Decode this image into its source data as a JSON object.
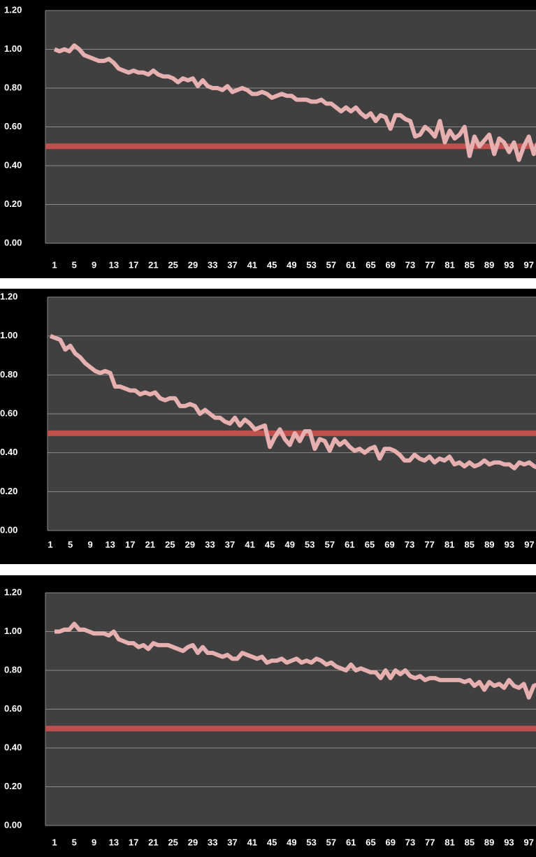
{
  "chart_data": [
    {
      "type": "line",
      "categories": [
        1,
        null,
        null,
        null,
        5,
        null,
        null,
        null,
        9,
        null,
        null,
        null,
        13,
        null,
        null,
        null,
        17,
        null,
        null,
        null,
        21,
        null,
        null,
        null,
        25,
        null,
        null,
        null,
        29,
        null,
        null,
        null,
        33,
        null,
        null,
        null,
        37,
        null,
        null,
        null,
        41,
        null,
        null,
        null,
        45,
        null,
        null,
        null,
        49,
        null,
        null,
        null,
        53,
        null,
        null,
        null,
        57,
        null,
        null,
        null,
        61,
        null,
        null,
        null,
        65,
        null,
        null,
        null,
        69,
        null,
        null,
        null,
        73,
        null,
        null,
        null,
        77,
        null,
        null,
        null,
        81,
        null,
        null,
        null,
        85,
        null,
        null,
        null,
        89,
        null,
        null,
        null,
        93,
        null,
        null,
        null,
        97,
        null,
        null,
        null
      ],
      "series": [
        {
          "color": "#e6b0b0",
          "values": [
            1.0,
            0.99,
            1.0,
            0.99,
            1.02,
            1.0,
            0.97,
            0.96,
            0.95,
            0.94,
            0.94,
            0.95,
            0.93,
            0.9,
            0.89,
            0.88,
            0.89,
            0.88,
            0.88,
            0.87,
            0.89,
            0.87,
            0.86,
            0.86,
            0.85,
            0.83,
            0.85,
            0.84,
            0.85,
            0.81,
            0.84,
            0.81,
            0.8,
            0.8,
            0.79,
            0.81,
            0.78,
            0.79,
            0.8,
            0.79,
            0.77,
            0.77,
            0.78,
            0.77,
            0.75,
            0.76,
            0.77,
            0.76,
            0.76,
            0.74,
            0.74,
            0.74,
            0.73,
            0.73,
            0.74,
            0.72,
            0.72,
            0.7,
            0.68,
            0.7,
            0.68,
            0.7,
            0.67,
            0.65,
            0.67,
            0.63,
            0.66,
            0.65,
            0.59,
            0.66,
            0.66,
            0.64,
            0.63,
            0.55,
            0.56,
            0.6,
            0.58,
            0.55,
            0.63,
            0.52,
            0.58,
            0.54,
            0.56,
            0.6,
            0.45,
            0.55,
            0.5,
            0.53,
            0.56,
            0.46,
            0.54,
            0.52,
            0.47,
            0.52,
            0.43,
            0.5,
            0.55,
            0.46,
            0.53,
            0.5
          ]
        }
      ],
      "reference_line": {
        "value": 0.5,
        "color": "#c0504d"
      },
      "ylim": [
        0,
        1.2
      ],
      "yticks": [
        {
          "value": 0,
          "label": "0.00"
        },
        {
          "value": 0.2,
          "label": "0.20"
        },
        {
          "value": 0.4,
          "label": "0.40"
        },
        {
          "value": 0.6,
          "label": "0.60"
        },
        {
          "value": 0.8,
          "label": "0.80"
        },
        {
          "value": 1.0,
          "label": "1.00"
        },
        {
          "value": 1.2,
          "label": "1.20"
        }
      ],
      "grid": true
    },
    {
      "type": "line",
      "categories": [
        1,
        null,
        null,
        null,
        5,
        null,
        null,
        null,
        9,
        null,
        null,
        null,
        13,
        null,
        null,
        null,
        17,
        null,
        null,
        null,
        21,
        null,
        null,
        null,
        25,
        null,
        null,
        null,
        29,
        null,
        null,
        null,
        33,
        null,
        null,
        null,
        37,
        null,
        null,
        null,
        41,
        null,
        null,
        null,
        45,
        null,
        null,
        null,
        49,
        null,
        null,
        null,
        53,
        null,
        null,
        null,
        57,
        null,
        null,
        null,
        61,
        null,
        null,
        null,
        65,
        null,
        null,
        null,
        69,
        null,
        null,
        null,
        73,
        null,
        null,
        null,
        77,
        null,
        null,
        null,
        81,
        null,
        null,
        null,
        85,
        null,
        null,
        null,
        89,
        null,
        null,
        null,
        93,
        null,
        null,
        null,
        97,
        null,
        null,
        null
      ],
      "series": [
        {
          "color": "#e6b0b0",
          "values": [
            1.0,
            0.99,
            0.98,
            0.93,
            0.95,
            0.91,
            0.89,
            0.86,
            0.84,
            0.82,
            0.81,
            0.82,
            0.81,
            0.74,
            0.74,
            0.73,
            0.72,
            0.72,
            0.7,
            0.71,
            0.7,
            0.71,
            0.68,
            0.67,
            0.68,
            0.68,
            0.64,
            0.64,
            0.65,
            0.64,
            0.6,
            0.62,
            0.6,
            0.58,
            0.58,
            0.56,
            0.55,
            0.58,
            0.54,
            0.57,
            0.55,
            0.52,
            0.53,
            0.54,
            0.43,
            0.48,
            0.52,
            0.47,
            0.44,
            0.5,
            0.46,
            0.51,
            0.51,
            0.42,
            0.47,
            0.46,
            0.41,
            0.47,
            0.44,
            0.46,
            0.43,
            0.41,
            0.42,
            0.4,
            0.42,
            0.43,
            0.37,
            0.42,
            0.42,
            0.41,
            0.39,
            0.36,
            0.36,
            0.39,
            0.37,
            0.36,
            0.38,
            0.35,
            0.37,
            0.36,
            0.38,
            0.34,
            0.35,
            0.33,
            0.35,
            0.33,
            0.34,
            0.36,
            0.34,
            0.35,
            0.35,
            0.34,
            0.34,
            0.32,
            0.35,
            0.34,
            0.35,
            0.33,
            0.32,
            0.33
          ]
        }
      ],
      "reference_line": {
        "value": 0.5,
        "color": "#c0504d"
      },
      "ylim": [
        0,
        1.2
      ],
      "yticks": [
        {
          "value": 0,
          "label": "0.00"
        },
        {
          "value": 0.2,
          "label": "0.20"
        },
        {
          "value": 0.4,
          "label": "0.40"
        },
        {
          "value": 0.6,
          "label": "0.60"
        },
        {
          "value": 0.8,
          "label": "0.80"
        },
        {
          "value": 1.0,
          "label": "1.00"
        },
        {
          "value": 1.2,
          "label": "1.20"
        }
      ],
      "grid": true
    },
    {
      "type": "line",
      "categories": [
        1,
        null,
        null,
        null,
        5,
        null,
        null,
        null,
        9,
        null,
        null,
        null,
        13,
        null,
        null,
        null,
        17,
        null,
        null,
        null,
        21,
        null,
        null,
        null,
        25,
        null,
        null,
        null,
        29,
        null,
        null,
        null,
        33,
        null,
        null,
        null,
        37,
        null,
        null,
        null,
        41,
        null,
        null,
        null,
        45,
        null,
        null,
        null,
        49,
        null,
        null,
        null,
        53,
        null,
        null,
        null,
        57,
        null,
        null,
        null,
        61,
        null,
        null,
        null,
        65,
        null,
        null,
        null,
        69,
        null,
        null,
        null,
        73,
        null,
        null,
        null,
        77,
        null,
        null,
        null,
        81,
        null,
        null,
        null,
        85,
        null,
        null,
        null,
        89,
        null,
        null,
        null,
        93,
        null,
        null,
        null,
        97,
        null,
        null,
        null
      ],
      "series": [
        {
          "color": "#e6b0b0",
          "values": [
            1.0,
            1.0,
            1.01,
            1.01,
            1.04,
            1.01,
            1.01,
            1.0,
            0.99,
            0.99,
            0.99,
            0.98,
            1.0,
            0.96,
            0.95,
            0.94,
            0.94,
            0.92,
            0.93,
            0.91,
            0.94,
            0.93,
            0.93,
            0.93,
            0.92,
            0.91,
            0.9,
            0.92,
            0.93,
            0.89,
            0.92,
            0.89,
            0.89,
            0.88,
            0.87,
            0.88,
            0.86,
            0.86,
            0.89,
            0.88,
            0.87,
            0.86,
            0.87,
            0.84,
            0.85,
            0.85,
            0.86,
            0.84,
            0.85,
            0.86,
            0.84,
            0.85,
            0.84,
            0.86,
            0.85,
            0.83,
            0.84,
            0.82,
            0.81,
            0.8,
            0.83,
            0.8,
            0.81,
            0.8,
            0.79,
            0.79,
            0.76,
            0.8,
            0.76,
            0.8,
            0.78,
            0.8,
            0.77,
            0.76,
            0.77,
            0.75,
            0.76,
            0.76,
            0.75,
            0.75,
            0.75,
            0.75,
            0.75,
            0.74,
            0.75,
            0.72,
            0.74,
            0.7,
            0.74,
            0.72,
            0.73,
            0.71,
            0.75,
            0.72,
            0.71,
            0.73,
            0.66,
            0.72,
            0.73,
            0.72
          ]
        }
      ],
      "reference_line": {
        "value": 0.5,
        "color": "#c0504d"
      },
      "ylim": [
        0,
        1.2
      ],
      "yticks": [
        {
          "value": 0,
          "label": "0.00"
        },
        {
          "value": 0.2,
          "label": "0.20"
        },
        {
          "value": 0.4,
          "label": "0.40"
        },
        {
          "value": 0.6,
          "label": "0.60"
        },
        {
          "value": 0.8,
          "label": "0.80"
        },
        {
          "value": 1.0,
          "label": "1.00"
        },
        {
          "value": 1.2,
          "label": "1.20"
        }
      ],
      "grid": true
    }
  ]
}
